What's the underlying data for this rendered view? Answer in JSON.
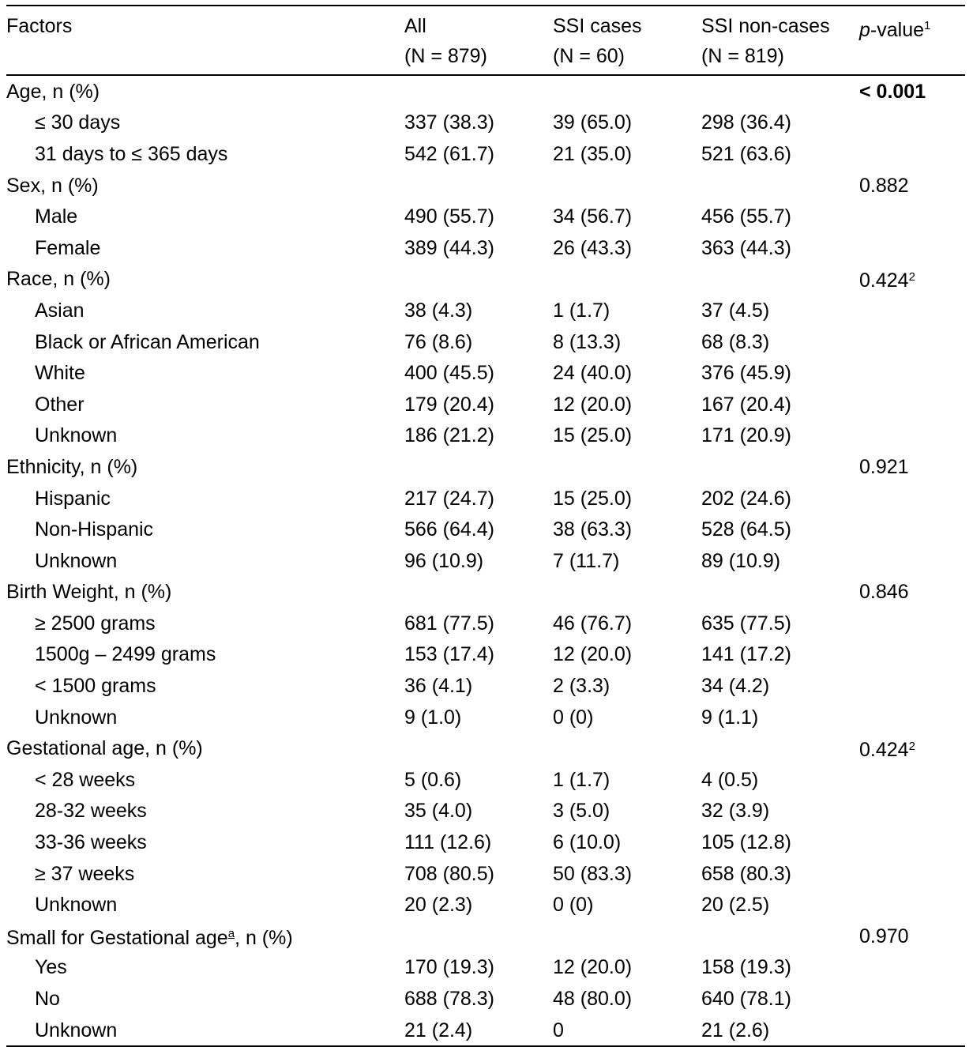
{
  "table": {
    "headers": {
      "factors": "Factors",
      "all_line1": "All",
      "all_line2": "(N = 879)",
      "cases_line1": "SSI cases",
      "cases_line2": "(N = 60)",
      "noncases_line1": "SSI non-cases",
      "noncases_line2": "(N = 819)",
      "p_italic": "p",
      "p_rest": "-value",
      "p_sup": "1"
    },
    "rows": [
      {
        "label": "Age, n (%)",
        "all": "",
        "cases": "",
        "noncases": "",
        "p": "< 0.001",
        "p_sup": ""
      },
      {
        "label": "≤ 30 days",
        "all": "337 (38.3)",
        "cases": "39 (65.0)",
        "noncases": "298 (36.4)",
        "p": "",
        "p_sup": ""
      },
      {
        "label": "31 days to ≤ 365 days",
        "all": "542 (61.7)",
        "cases": "21 (35.0)",
        "noncases": "521 (63.6)",
        "p": "",
        "p_sup": ""
      },
      {
        "label": "Sex, n (%)",
        "all": "",
        "cases": "",
        "noncases": "",
        "p": "0.882",
        "p_sup": ""
      },
      {
        "label": "Male",
        "all": "490 (55.7)",
        "cases": "34 (56.7)",
        "noncases": "456 (55.7)",
        "p": "",
        "p_sup": ""
      },
      {
        "label": "Female",
        "all": "389 (44.3)",
        "cases": "26 (43.3)",
        "noncases": "363 (44.3)",
        "p": "",
        "p_sup": ""
      },
      {
        "label": "Race, n (%)",
        "all": "",
        "cases": "",
        "noncases": "",
        "p": "0.424",
        "p_sup": "2"
      },
      {
        "label": "Asian",
        "all": "38 (4.3)",
        "cases": "1 (1.7)",
        "noncases": "37 (4.5)",
        "p": "",
        "p_sup": ""
      },
      {
        "label": "Black or African American",
        "all": "76 (8.6)",
        "cases": "8 (13.3)",
        "noncases": "68 (8.3)",
        "p": "",
        "p_sup": ""
      },
      {
        "label": "White",
        "all": "400 (45.5)",
        "cases": "24 (40.0)",
        "noncases": "376 (45.9)",
        "p": "",
        "p_sup": ""
      },
      {
        "label": "Other",
        "all": "179 (20.4)",
        "cases": "12 (20.0)",
        "noncases": "167 (20.4)",
        "p": "",
        "p_sup": ""
      },
      {
        "label": "Unknown",
        "all": "186 (21.2)",
        "cases": "15 (25.0)",
        "noncases": "171 (20.9)",
        "p": "",
        "p_sup": ""
      },
      {
        "label": "Ethnicity, n (%)",
        "all": "",
        "cases": "",
        "noncases": "",
        "p": "0.921",
        "p_sup": ""
      },
      {
        "label": "Hispanic",
        "all": "217 (24.7)",
        "cases": "15 (25.0)",
        "noncases": "202 (24.6)",
        "p": "",
        "p_sup": ""
      },
      {
        "label": "Non-Hispanic",
        "all": "566 (64.4)",
        "cases": "38 (63.3)",
        "noncases": "528 (64.5)",
        "p": "",
        "p_sup": ""
      },
      {
        "label": "Unknown",
        "all": "96 (10.9)",
        "cases": "7 (11.7)",
        "noncases": "89 (10.9)",
        "p": "",
        "p_sup": ""
      },
      {
        "label": "Birth Weight, n (%)",
        "all": "",
        "cases": "",
        "noncases": "",
        "p": "0.846",
        "p_sup": ""
      },
      {
        "label": "≥ 2500 grams",
        "all": "681 (77.5)",
        "cases": "46 (76.7)",
        "noncases": "635 (77.5)",
        "p": "",
        "p_sup": ""
      },
      {
        "label": "1500g – 2499 grams",
        "all": "153 (17.4)",
        "cases": "12 (20.0)",
        "noncases": "141 (17.2)",
        "p": "",
        "p_sup": ""
      },
      {
        "label": "< 1500 grams",
        "all": "36 (4.1)",
        "cases": "2 (3.3)",
        "noncases": "34 (4.2)",
        "p": "",
        "p_sup": ""
      },
      {
        "label": "Unknown",
        "all": "9 (1.0)",
        "cases": "0 (0)",
        "noncases": "9 (1.1)",
        "p": "",
        "p_sup": ""
      },
      {
        "label": "Gestational age, n (%)",
        "all": "",
        "cases": "",
        "noncases": "",
        "p": "0.424",
        "p_sup": "2"
      },
      {
        "label": "< 28 weeks",
        "all": "5 (0.6)",
        "cases": "1 (1.7)",
        "noncases": "4 (0.5)",
        "p": "",
        "p_sup": ""
      },
      {
        "label": "28-32 weeks",
        "all": "35 (4.0)",
        "cases": "3 (5.0)",
        "noncases": "32 (3.9)",
        "p": "",
        "p_sup": ""
      },
      {
        "label": "33-36 weeks",
        "all": "111 (12.6)",
        "cases": "6 (10.0)",
        "noncases": "105 (12.8)",
        "p": "",
        "p_sup": ""
      },
      {
        "label": "≥ 37 weeks",
        "all": "708 (80.5)",
        "cases": "50 (83.3)",
        "noncases": "658 (80.3)",
        "p": "",
        "p_sup": ""
      },
      {
        "label": "Unknown",
        "all": "20 (2.3)",
        "cases": "0 (0)",
        "noncases": "20 (2.5)",
        "p": "",
        "p_sup": ""
      },
      {
        "label": "Small for Gestational age",
        "label_sup": "a",
        "label_tail": ", n (%)",
        "all": "",
        "cases": "",
        "noncases": "",
        "p": "0.970",
        "p_sup": ""
      },
      {
        "label": "Yes",
        "all": "170 (19.3)",
        "cases": "12 (20.0)",
        "noncases": "158 (19.3)",
        "p": "",
        "p_sup": ""
      },
      {
        "label": "No",
        "all": "688 (78.3)",
        "cases": "48 (80.0)",
        "noncases": "640 (78.1)",
        "p": "",
        "p_sup": ""
      },
      {
        "label": "Unknown",
        "all": "21 (2.4)",
        "cases": "0",
        "noncases": "21 (2.6)",
        "p": "",
        "p_sup": ""
      }
    ]
  }
}
